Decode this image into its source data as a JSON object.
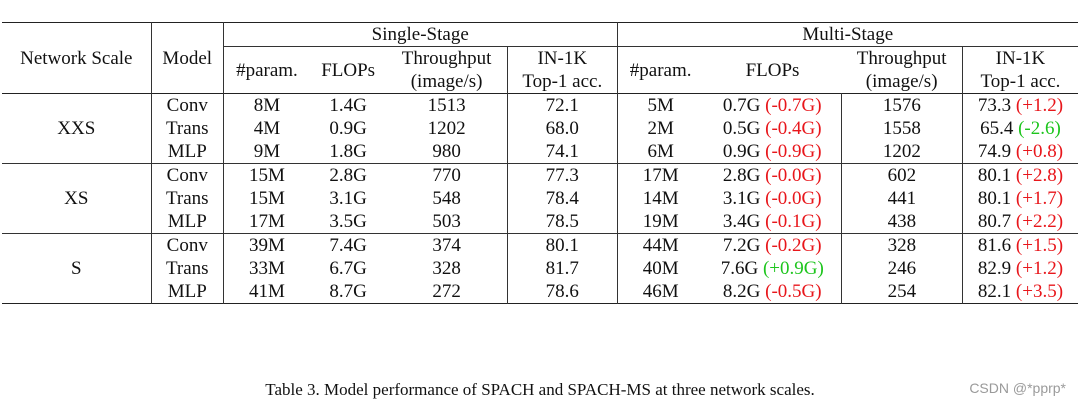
{
  "table": {
    "col_network_scale": "Network Scale",
    "col_model": "Model",
    "group_single": "Single-Stage",
    "group_multi": "Multi-Stage",
    "sub_param": "#param.",
    "sub_flops": "FLOPs",
    "sub_throughput_1": "Throughput",
    "sub_throughput_2": "(image/s)",
    "sub_acc_1": "IN-1K",
    "sub_acc_2": "Top-1 acc.",
    "groups": [
      {
        "scale": "XXS",
        "rows": [
          {
            "model": "Conv",
            "s_param": "8M",
            "s_flops": "1.4G",
            "s_tp": "1513",
            "s_acc": "72.1",
            "m_param": "5M",
            "m_flops": "0.7G",
            "m_flops_d": "(-0.7G)",
            "m_flops_c": "neg",
            "m_tp": "1576",
            "m_acc": "73.3",
            "m_acc_d": "(+1.2)",
            "m_acc_c": "neg"
          },
          {
            "model": "Trans",
            "s_param": "4M",
            "s_flops": "0.9G",
            "s_tp": "1202",
            "s_acc": "68.0",
            "m_param": "2M",
            "m_flops": "0.5G",
            "m_flops_d": "(-0.4G)",
            "m_flops_c": "neg",
            "m_tp": "1558",
            "m_acc": "65.4",
            "m_acc_d": "(-2.6)",
            "m_acc_c": "pos"
          },
          {
            "model": "MLP",
            "s_param": "9M",
            "s_flops": "1.8G",
            "s_tp": "980",
            "s_acc": "74.1",
            "m_param": "6M",
            "m_flops": "0.9G",
            "m_flops_d": "(-0.9G)",
            "m_flops_c": "neg",
            "m_tp": "1202",
            "m_acc": "74.9",
            "m_acc_d": "(+0.8)",
            "m_acc_c": "neg"
          }
        ]
      },
      {
        "scale": "XS",
        "rows": [
          {
            "model": "Conv",
            "s_param": "15M",
            "s_flops": "2.8G",
            "s_tp": "770",
            "s_acc": "77.3",
            "m_param": "17M",
            "m_flops": "2.8G",
            "m_flops_d": "(-0.0G)",
            "m_flops_c": "neg",
            "m_tp": "602",
            "m_acc": "80.1",
            "m_acc_d": "(+2.8)",
            "m_acc_c": "neg"
          },
          {
            "model": "Trans",
            "s_param": "15M",
            "s_flops": "3.1G",
            "s_tp": "548",
            "s_acc": "78.4",
            "m_param": "14M",
            "m_flops": "3.1G",
            "m_flops_d": "(-0.0G)",
            "m_flops_c": "neg",
            "m_tp": "441",
            "m_acc": "80.1",
            "m_acc_d": "(+1.7)",
            "m_acc_c": "neg"
          },
          {
            "model": "MLP",
            "s_param": "17M",
            "s_flops": "3.5G",
            "s_tp": "503",
            "s_acc": "78.5",
            "m_param": "19M",
            "m_flops": "3.4G",
            "m_flops_d": "(-0.1G)",
            "m_flops_c": "neg",
            "m_tp": "438",
            "m_acc": "80.7",
            "m_acc_d": "(+2.2)",
            "m_acc_c": "neg"
          }
        ]
      },
      {
        "scale": "S",
        "rows": [
          {
            "model": "Conv",
            "s_param": "39M",
            "s_flops": "7.4G",
            "s_tp": "374",
            "s_acc": "80.1",
            "m_param": "44M",
            "m_flops": "7.2G",
            "m_flops_d": "(-0.2G)",
            "m_flops_c": "neg",
            "m_tp": "328",
            "m_acc": "81.6",
            "m_acc_d": "(+1.5)",
            "m_acc_c": "neg"
          },
          {
            "model": "Trans",
            "s_param": "33M",
            "s_flops": "6.7G",
            "s_tp": "328",
            "s_acc": "81.7",
            "m_param": "40M",
            "m_flops": "7.6G",
            "m_flops_d": "(+0.9G)",
            "m_flops_c": "pos",
            "m_tp": "246",
            "m_acc": "82.9",
            "m_acc_d": "(+1.2)",
            "m_acc_c": "neg"
          },
          {
            "model": "MLP",
            "s_param": "41M",
            "s_flops": "8.7G",
            "s_tp": "272",
            "s_acc": "78.6",
            "m_param": "46M",
            "m_flops": "8.2G",
            "m_flops_d": "(-0.5G)",
            "m_flops_c": "neg",
            "m_tp": "254",
            "m_acc": "82.1",
            "m_acc_d": "(+3.5)",
            "m_acc_c": "neg"
          }
        ]
      }
    ]
  },
  "caption": "Table 3. Model performance of SPACH and SPACH-MS at three network scales.",
  "watermark": "CSDN @*pprp*",
  "colors": {
    "increase_worse": "#e8161b",
    "decrease_better": "#1dc51d"
  }
}
